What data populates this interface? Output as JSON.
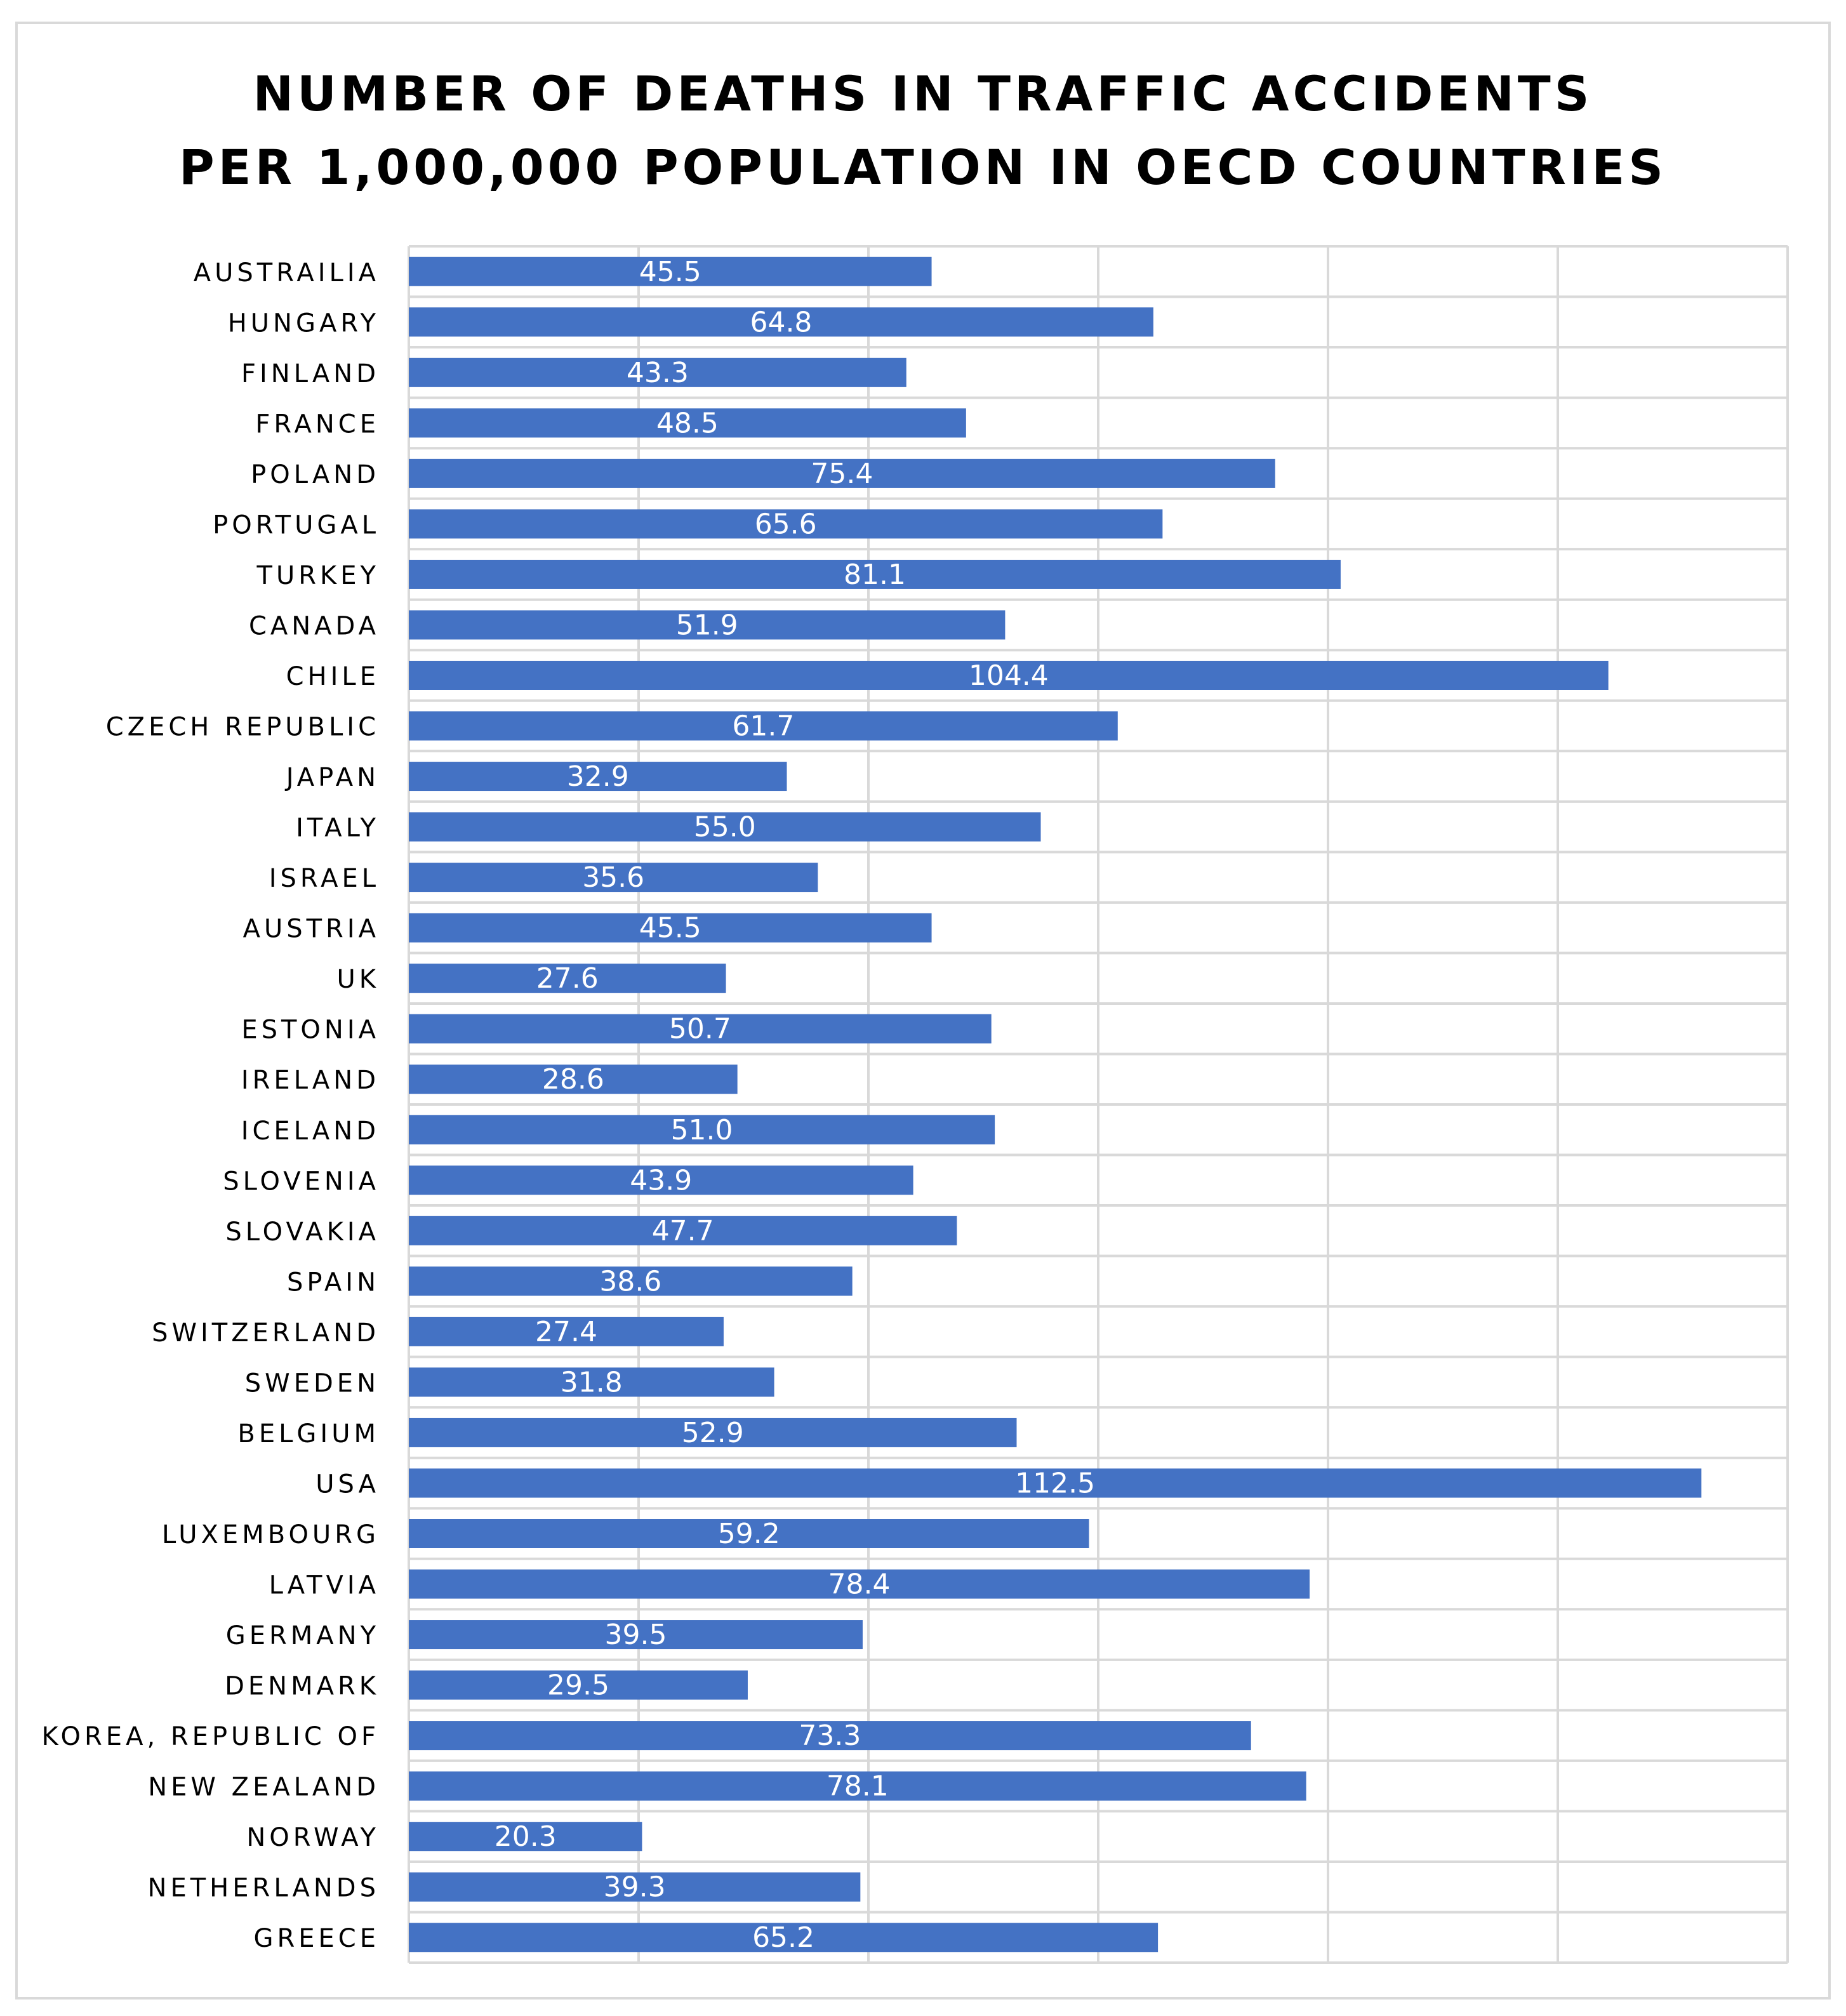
{
  "chart_data": {
    "type": "bar",
    "orientation": "horizontal",
    "title_lines": [
      "NUMBER OF DEATHS IN TRAFFIC ACCIDENTS",
      "PER 1,000,000 POPULATION IN OECD COUNTRIES"
    ],
    "categories": [
      "AUSTRAILIA",
      "HUNGARY",
      "FINLAND",
      "FRANCE",
      "POLAND",
      "PORTUGAL",
      "TURKEY",
      "CANADA",
      "CHILE",
      "CZECH REPUBLIC",
      "JAPAN",
      "ITALY",
      "ISRAEL",
      "AUSTRIA",
      "UK",
      "ESTONIA",
      "IRELAND",
      "ICELAND",
      "SLOVENIA",
      "SLOVAKIA",
      "SPAIN",
      "SWITZERLAND",
      "SWEDEN",
      "BELGIUM",
      "USA",
      "LUXEMBOURG",
      "LATVIA",
      "GERMANY",
      "DENMARK",
      "KOREA, REPUBLIC OF",
      "NEW ZEALAND",
      "NORWAY",
      "NETHERLANDS",
      "GREECE"
    ],
    "values": [
      45.5,
      64.8,
      43.3,
      48.5,
      75.4,
      65.6,
      81.1,
      51.9,
      104.4,
      61.7,
      32.9,
      55.0,
      35.6,
      45.5,
      27.6,
      50.7,
      28.6,
      51.0,
      43.9,
      47.7,
      38.6,
      27.4,
      31.8,
      52.9,
      112.5,
      59.2,
      78.4,
      39.5,
      29.5,
      73.3,
      78.1,
      20.3,
      39.3,
      65.2
    ],
    "value_labels": [
      "45.5",
      "64.8",
      "43.3",
      "48.5",
      "75.4",
      "65.6",
      "81.1",
      "51.9",
      "104.4",
      "61.7",
      "32.9",
      "55.0",
      "35.6",
      "45.5",
      "27.6",
      "50.7",
      "28.6",
      "51.0",
      "43.9",
      "47.7",
      "38.6",
      "27.4",
      "31.8",
      "52.9",
      "112.5",
      "59.2",
      "78.4",
      "39.5",
      "29.5",
      "73.3",
      "78.1",
      "20.3",
      "39.3",
      "65.2"
    ],
    "xlim": [
      0,
      120
    ],
    "x_gridline_step": 20,
    "y_gridlines": true,
    "legend": "none",
    "bar_color": "#4472c4",
    "label_color": "#ffffff",
    "grid_color": "#d9d9d9"
  }
}
